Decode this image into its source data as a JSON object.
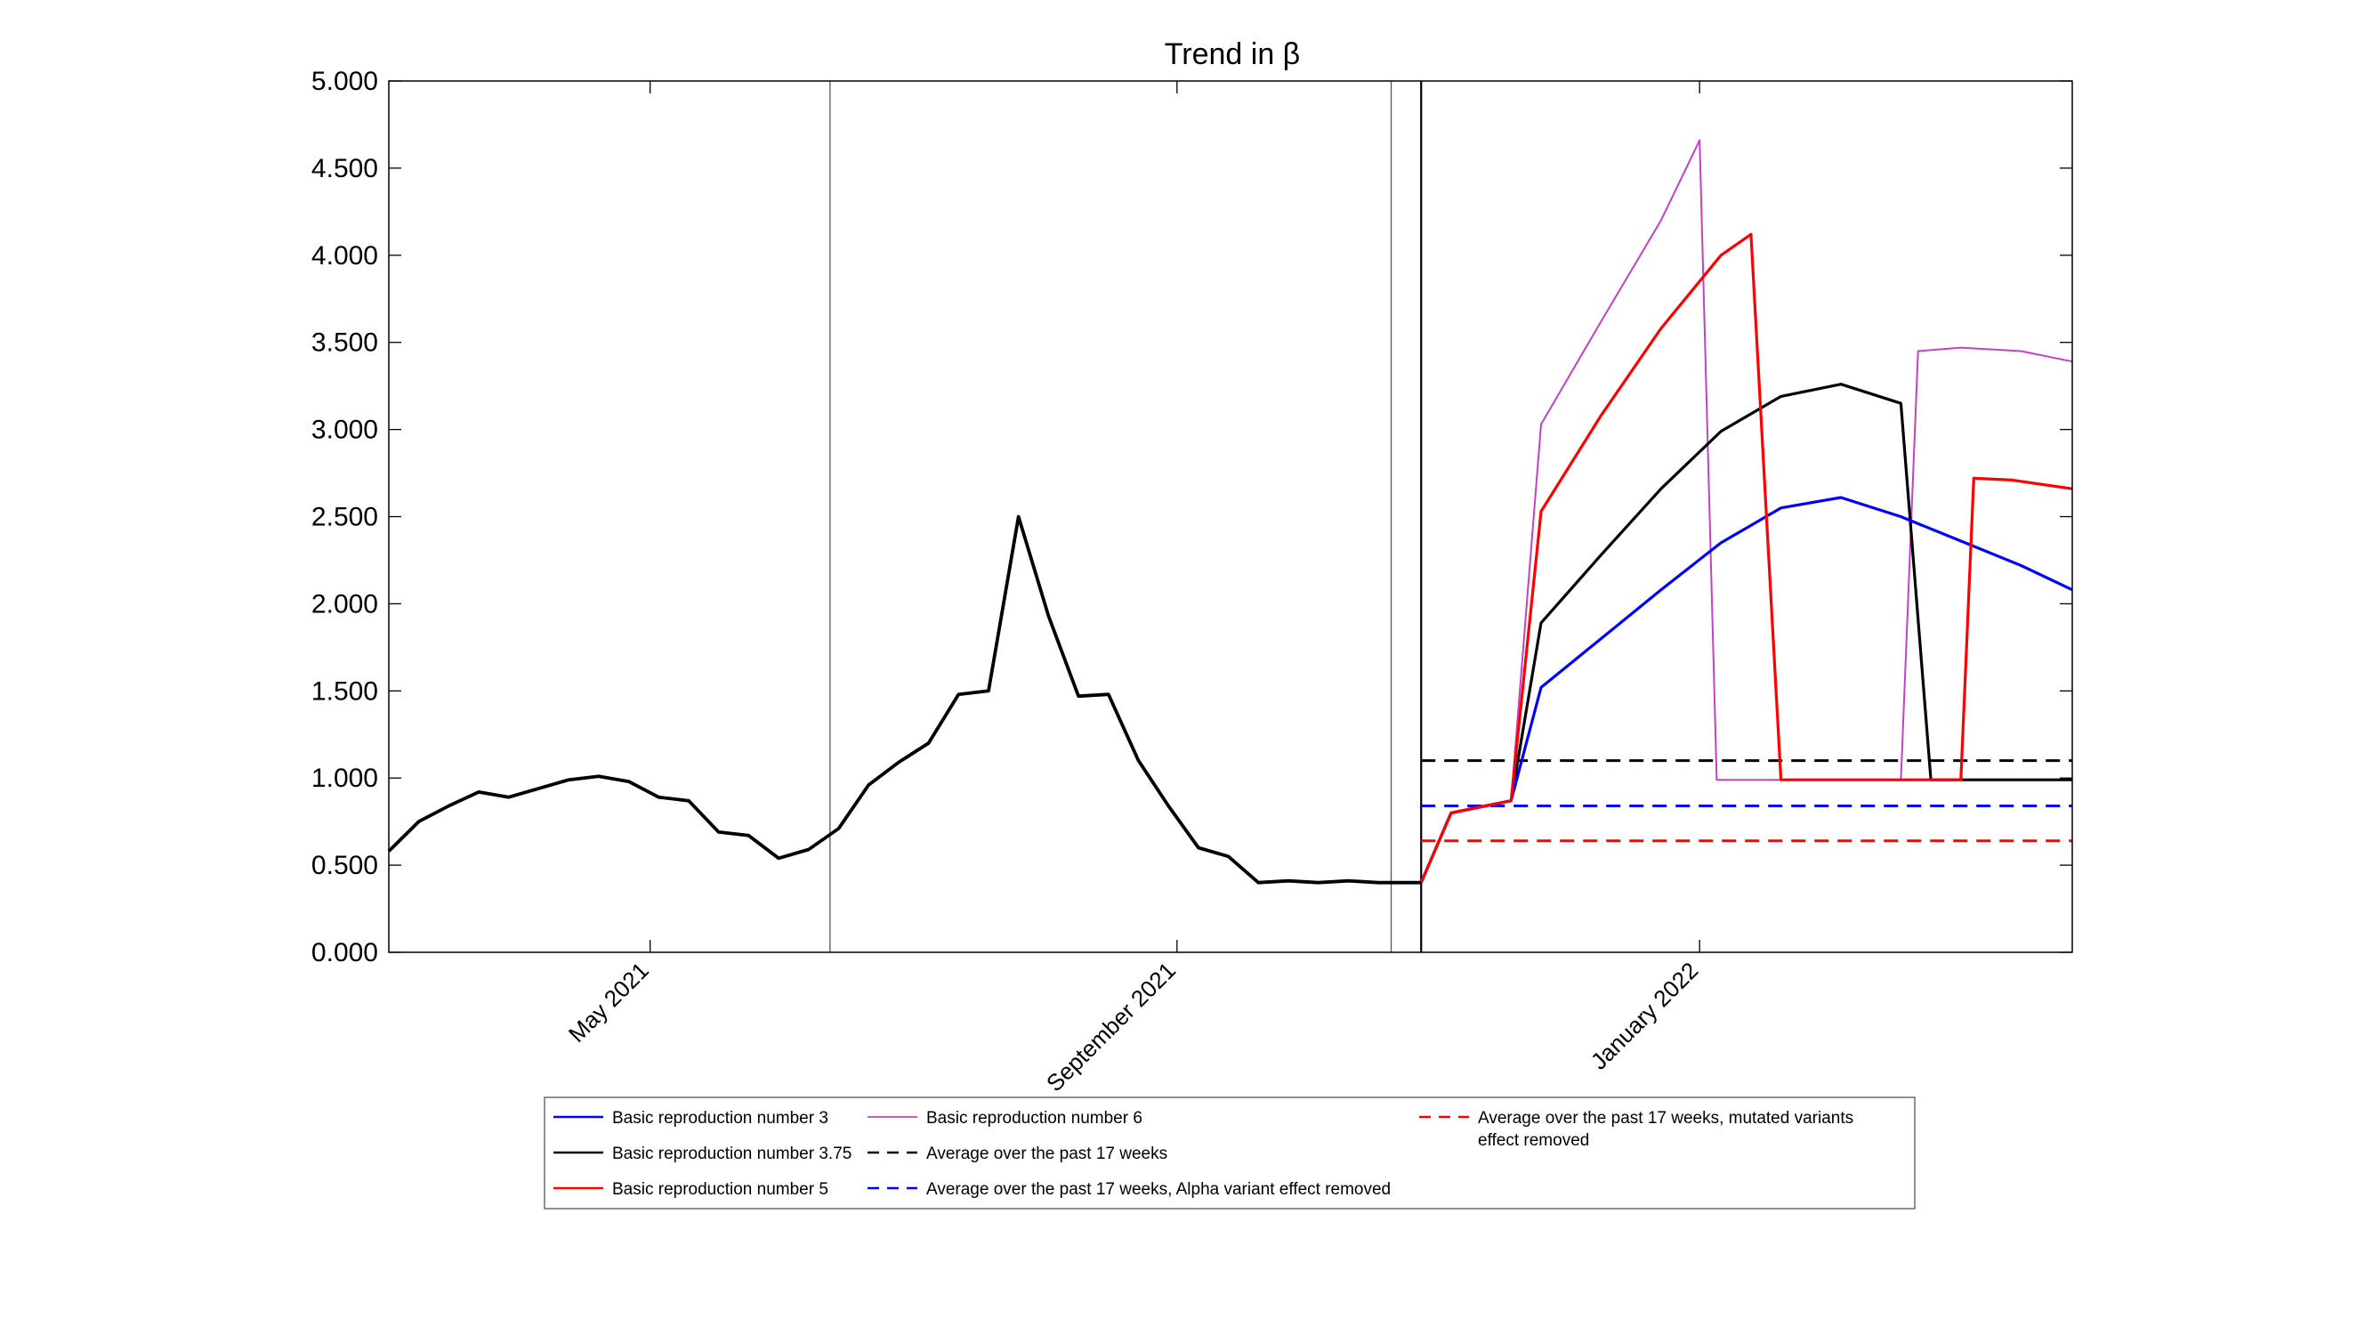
{
  "chart_data": {
    "type": "line",
    "title": "Trend in β",
    "xlabel": "",
    "ylabel": "",
    "x_range": [
      "2021-03-01",
      "2022-03-29"
    ],
    "ylim": [
      0,
      5
    ],
    "y_ticks": [
      "0.000",
      "0.500",
      "1.000",
      "1.500",
      "2.000",
      "2.500",
      "3.000",
      "3.500",
      "4.000",
      "4.500",
      "5.000"
    ],
    "x_ticks": [
      {
        "label": "May 2021",
        "date": "2021-05-01"
      },
      {
        "label": "September 2021",
        "date": "2021-09-01"
      },
      {
        "label": "January 2022",
        "date": "2022-01-01"
      }
    ],
    "vertical_lines": [
      "2021-06-12",
      "2021-10-21",
      "2021-10-28"
    ],
    "grid": false,
    "legend_position": "bottom",
    "historical": {
      "name": "",
      "color": "#000000",
      "x": [
        "2021-03-01",
        "2021-03-08",
        "2021-03-15",
        "2021-03-22",
        "2021-03-29",
        "2021-04-05",
        "2021-04-12",
        "2021-04-19",
        "2021-04-26",
        "2021-05-03",
        "2021-05-10",
        "2021-05-17",
        "2021-05-24",
        "2021-05-31",
        "2021-06-07",
        "2021-06-14",
        "2021-06-21",
        "2021-06-28",
        "2021-07-05",
        "2021-07-12",
        "2021-07-19",
        "2021-07-26",
        "2021-08-02",
        "2021-08-09",
        "2021-08-16",
        "2021-08-23",
        "2021-08-30",
        "2021-09-06",
        "2021-09-13",
        "2021-09-20",
        "2021-09-27",
        "2021-10-04",
        "2021-10-11",
        "2021-10-18",
        "2021-10-28"
      ],
      "values": [
        0.58,
        0.75,
        0.84,
        0.92,
        0.89,
        0.94,
        0.99,
        1.01,
        0.98,
        0.89,
        0.87,
        0.69,
        0.67,
        0.54,
        0.59,
        0.71,
        0.96,
        1.09,
        1.2,
        1.48,
        1.5,
        2.5,
        1.93,
        1.47,
        1.48,
        1.1,
        0.84,
        0.6,
        0.55,
        0.4,
        0.41,
        0.4,
        0.41,
        0.4,
        0.4
      ]
    },
    "series": [
      {
        "name": "Basic reproduction number 3",
        "color": "#0000ff",
        "dash": "solid",
        "x": [
          "2021-10-28",
          "2021-11-04",
          "2021-11-18",
          "2021-11-25",
          "2021-12-09",
          "2021-12-23",
          "2022-01-06",
          "2022-01-20",
          "2022-02-03",
          "2022-02-17",
          "2022-03-03",
          "2022-03-17",
          "2022-03-29"
        ],
        "values": [
          0.4,
          0.8,
          0.87,
          1.52,
          1.8,
          2.08,
          2.35,
          2.55,
          2.61,
          2.5,
          2.36,
          2.22,
          2.08
        ]
      },
      {
        "name": "Basic reproduction number 3.75",
        "color": "#000000",
        "dash": "solid",
        "x": [
          "2021-10-28",
          "2021-11-04",
          "2021-11-18",
          "2021-11-25",
          "2021-12-09",
          "2021-12-23",
          "2022-01-06",
          "2022-01-20",
          "2022-02-03",
          "2022-02-17",
          "2022-02-24",
          "2022-03-03",
          "2022-03-17",
          "2022-03-29"
        ],
        "values": [
          0.4,
          0.8,
          0.87,
          1.89,
          2.28,
          2.66,
          2.99,
          3.19,
          3.26,
          3.15,
          0.99,
          0.99,
          0.99,
          0.99
        ]
      },
      {
        "name": "Basic reproduction number 5",
        "color": "#ff0000",
        "dash": "solid",
        "x": [
          "2021-10-28",
          "2021-11-04",
          "2021-11-18",
          "2021-11-25",
          "2021-12-09",
          "2021-12-23",
          "2022-01-06",
          "2022-01-13",
          "2022-01-20",
          "2022-02-03",
          "2022-02-17",
          "2022-03-03",
          "2022-03-06",
          "2022-03-15",
          "2022-03-29"
        ],
        "values": [
          0.4,
          0.8,
          0.87,
          2.53,
          3.08,
          3.58,
          4.0,
          4.12,
          0.99,
          0.99,
          0.99,
          0.99,
          2.72,
          2.71,
          2.66
        ]
      },
      {
        "name": "Basic reproduction number 6",
        "color": "#c440c4",
        "dash": "solid",
        "x": [
          "2021-10-28",
          "2021-11-04",
          "2021-11-18",
          "2021-11-25",
          "2021-12-09",
          "2021-12-23",
          "2022-01-01",
          "2022-01-05",
          "2022-01-20",
          "2022-02-03",
          "2022-02-17",
          "2022-02-21",
          "2022-03-03",
          "2022-03-17",
          "2022-03-29"
        ],
        "values": [
          0.4,
          0.8,
          0.87,
          3.03,
          3.62,
          4.2,
          4.66,
          0.99,
          0.99,
          0.99,
          0.99,
          3.45,
          3.47,
          3.45,
          3.39
        ]
      },
      {
        "name": "Average over the past 17 weeks",
        "color": "#000000",
        "dash": "dashed",
        "x": [
          "2021-10-28",
          "2022-03-29"
        ],
        "values": [
          1.1,
          1.1
        ]
      },
      {
        "name": "Average over the past 17 weeks, Alpha variant effect removed",
        "color": "#0000ff",
        "dash": "dashed",
        "x": [
          "2021-10-28",
          "2022-03-29"
        ],
        "values": [
          0.84,
          0.84
        ]
      },
      {
        "name": "Average over the past 17 weeks, mutated variants effect removed",
        "color": "#ff0000",
        "dash": "dashed",
        "x": [
          "2021-10-28",
          "2022-03-29"
        ],
        "values": [
          0.64,
          0.64
        ]
      }
    ]
  }
}
